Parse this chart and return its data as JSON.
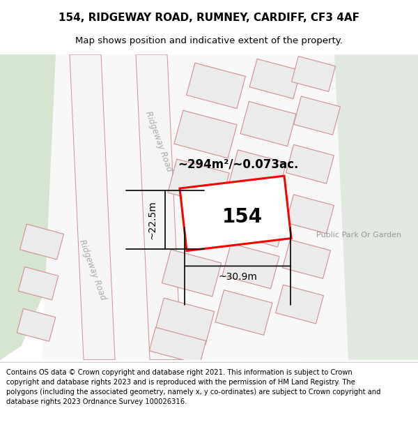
{
  "title": "154, RIDGEWAY ROAD, RUMNEY, CARDIFF, CF3 4AF",
  "subtitle": "Map shows position and indicative extent of the property.",
  "footer": "Contains OS data © Crown copyright and database right 2021. This information is subject to Crown copyright and database rights 2023 and is reproduced with the permission of HM Land Registry. The polygons (including the associated geometry, namely x, y co-ordinates) are subject to Crown copyright and database rights 2023 Ordnance Survey 100026316.",
  "area_text": "~294m²/~0.073ac.",
  "label_154": "154",
  "dim_width": "~30.9m",
  "dim_height": "~22.5m",
  "road_label1": "Ridgeway Road",
  "road_label2": "Ridgeway Road",
  "park_label": "Public Park Or Garden",
  "title_fontsize": 11,
  "subtitle_fontsize": 9.5,
  "footer_fontsize": 7.2,
  "map_bg": "#f2f2f2",
  "green_left": "#d6e5d0",
  "green_right": "#e0e8e0",
  "block_fill": "#ebebeb",
  "block_edge": "#d09090",
  "road_edge": "#d09090",
  "highlight_color": "#ff0000",
  "dim_color": "#111111"
}
